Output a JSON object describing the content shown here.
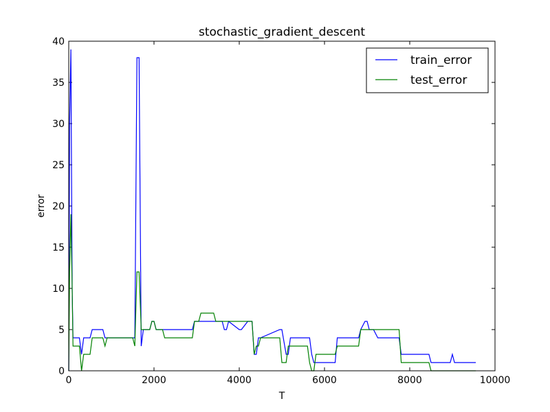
{
  "chart_data": {
    "type": "line",
    "title": "stochastic_gradient_descent",
    "xlabel": "T",
    "ylabel": "error",
    "xlim": [
      0,
      10000
    ],
    "ylim": [
      0,
      40
    ],
    "grid": false,
    "legend_position": "top-right",
    "xticks": [
      0,
      2000,
      4000,
      6000,
      8000,
      10000
    ],
    "xtick_labels": [
      "0",
      "2000",
      "4000",
      "6000",
      "8000",
      "10000"
    ],
    "yticks": [
      0,
      5,
      10,
      15,
      20,
      25,
      30,
      35,
      40
    ],
    "ytick_labels": [
      "0",
      "5",
      "10",
      "15",
      "20",
      "25",
      "30",
      "35",
      "40"
    ],
    "series": [
      {
        "name": "train_error",
        "color": "#0000ff",
        "x": [
          0,
          20,
          50,
          80,
          100,
          120,
          250,
          300,
          350,
          500,
          550,
          800,
          850,
          900,
          950,
          1000,
          1500,
          1550,
          1600,
          1650,
          1700,
          1750,
          1900,
          1950,
          2000,
          2050,
          2100,
          2150,
          2900,
          2950,
          3000,
          3550,
          3600,
          3650,
          3700,
          3750,
          4000,
          4050,
          4200,
          4250,
          4300,
          4350,
          4400,
          4450,
          4500,
          4950,
          5000,
          5100,
          5150,
          5200,
          5600,
          5650,
          5700,
          5750,
          6250,
          6300,
          6800,
          6850,
          6950,
          7000,
          7050,
          7150,
          7250,
          7750,
          7800,
          8450,
          8500,
          8950,
          9000,
          9050,
          9550
        ],
        "y": [
          0,
          30,
          39,
          10,
          4,
          4,
          4,
          2,
          4,
          4,
          5,
          5,
          4,
          4,
          4,
          4,
          4,
          4,
          38,
          38,
          3,
          5,
          5,
          6,
          6,
          5,
          5,
          5,
          5,
          6,
          6,
          6,
          6,
          5,
          5,
          6,
          5,
          5,
          6,
          6,
          6,
          2,
          2,
          4,
          4,
          5,
          5,
          2,
          2,
          4,
          4,
          4,
          2,
          1,
          1,
          4,
          4,
          5,
          6,
          6,
          5,
          5,
          4,
          4,
          2,
          2,
          1,
          1,
          2,
          1,
          1
        ]
      },
      {
        "name": "test_error",
        "color": "#008000",
        "x": [
          0,
          20,
          50,
          80,
          100,
          250,
          300,
          350,
          500,
          550,
          800,
          850,
          900,
          950,
          1000,
          1500,
          1550,
          1600,
          1650,
          1700,
          1900,
          1950,
          2000,
          2050,
          2100,
          2200,
          2250,
          2900,
          2950,
          3000,
          3050,
          3100,
          3400,
          3450,
          3500,
          4200,
          4250,
          4300,
          4350,
          4400,
          4450,
          4500,
          4950,
          5000,
          5100,
          5150,
          5200,
          5600,
          5650,
          5700,
          5750,
          5800,
          6250,
          6300,
          6800,
          6850,
          7000,
          7750,
          7800,
          8450,
          8500,
          8950,
          9000,
          9550
        ],
        "y": [
          0,
          12,
          19,
          10,
          3,
          3,
          0,
          2,
          2,
          4,
          4,
          3,
          4,
          4,
          4,
          4,
          3,
          12,
          12,
          5,
          5,
          6,
          6,
          5,
          5,
          5,
          4,
          4,
          6,
          6,
          6,
          7,
          7,
          6,
          6,
          6,
          6,
          6,
          2,
          3,
          3,
          4,
          4,
          1,
          1,
          3,
          3,
          3,
          1,
          0,
          0,
          2,
          2,
          3,
          3,
          5,
          5,
          5,
          1,
          1,
          0,
          0,
          0,
          0
        ]
      }
    ]
  }
}
